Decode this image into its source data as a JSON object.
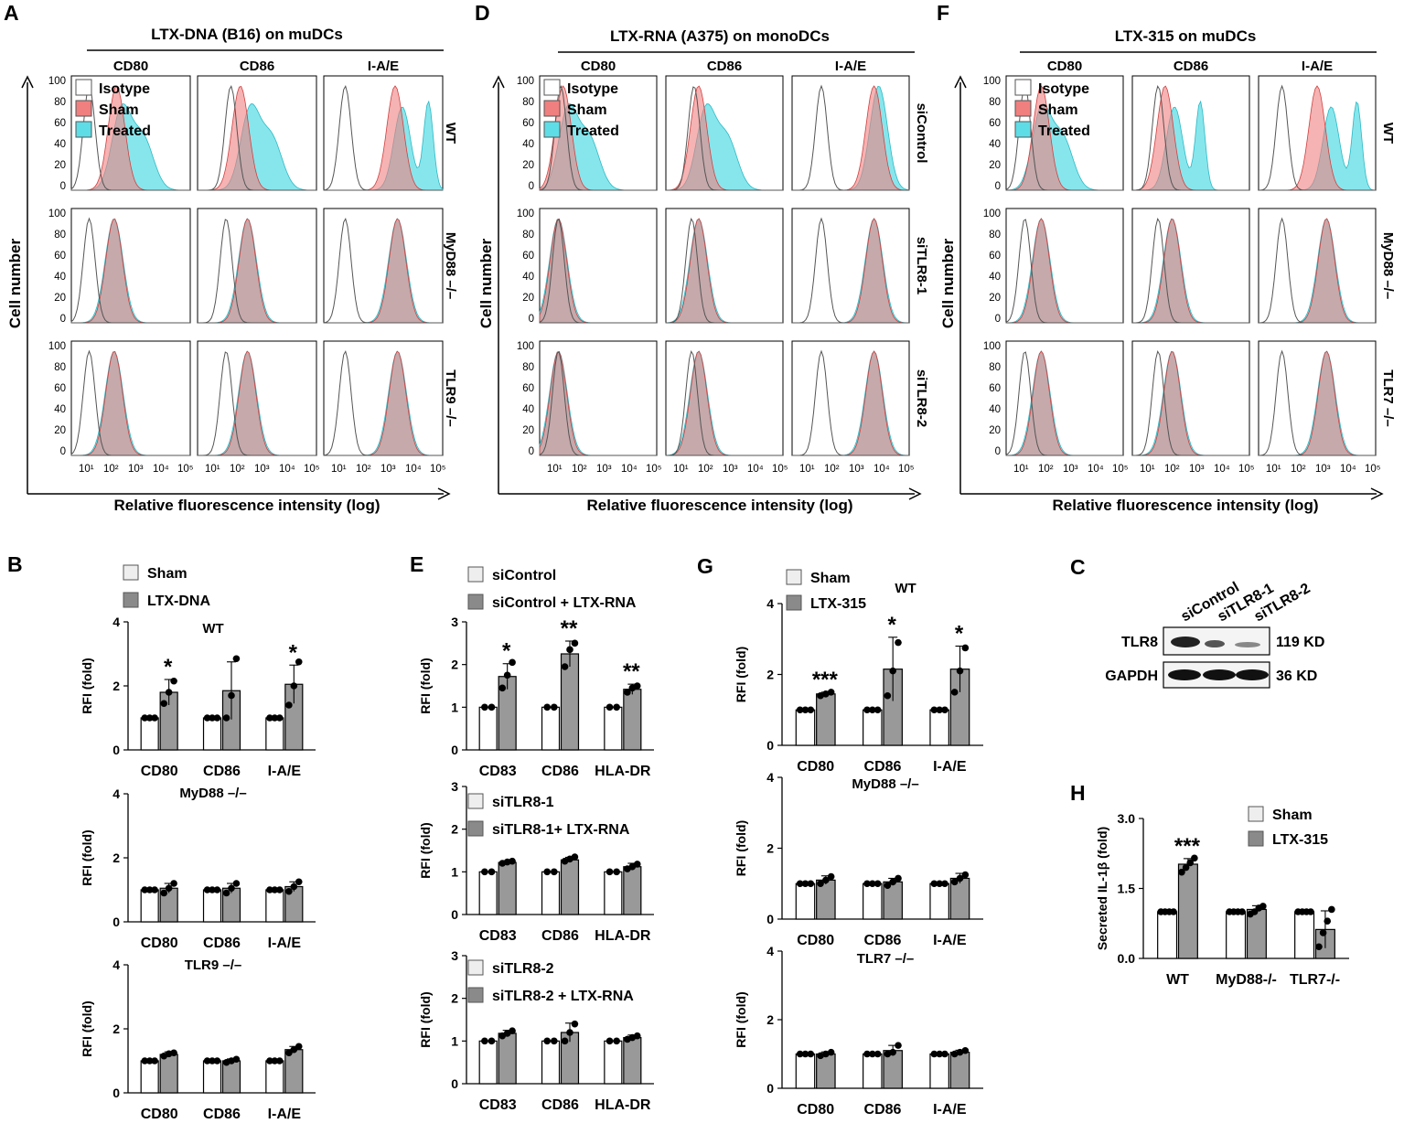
{
  "colors": {
    "isotype": "#555555",
    "sham": "#f08080",
    "treated": "#5fdde6",
    "overlap": "#7f9dbd",
    "bar_light": "#ffffff",
    "bar_dark": "#999999"
  },
  "flow_panels": [
    {
      "id": "flow-a",
      "letter": "A",
      "title": "LTX-DNA (B16) on muDCs",
      "ylabel": "Cell number",
      "xlabel": "Relative fluorescence intensity (log)",
      "columns": [
        "CD80",
        "CD86",
        "I-A/E"
      ],
      "rows": [
        "WT",
        "MyD88 –/–",
        "TLR9 –/–"
      ],
      "legend": [
        "Isotype",
        "Sham",
        "Treated"
      ],
      "yticks": [
        "100",
        "80",
        "60",
        "40",
        "20",
        "0"
      ],
      "xticks": [
        "10¹",
        "10²",
        "10³",
        "10⁴",
        "10⁵"
      ]
    },
    {
      "id": "flow-d",
      "letter": "D",
      "title": "LTX-RNA (A375) on monoDCs",
      "ylabel": "Cell number",
      "xlabel": "Relative fluorescence intensity (log)",
      "columns": [
        "CD80",
        "CD86",
        "I-A/E"
      ],
      "rows": [
        "siControl",
        "siTLR8-1",
        "siTLR8-2"
      ],
      "legend": [
        "Isotype",
        "Sham",
        "Treated"
      ],
      "yticks": [
        "100",
        "80",
        "60",
        "40",
        "20",
        "0"
      ],
      "xticks": [
        "10¹",
        "10²",
        "10³",
        "10⁴",
        "10⁵"
      ]
    },
    {
      "id": "flow-f",
      "letter": "F",
      "title": "LTX-315 on muDCs",
      "ylabel": "Cell number",
      "xlabel": "Relative fluorescence intensity (log)",
      "columns": [
        "CD80",
        "CD86",
        "I-A/E"
      ],
      "rows": [
        "WT",
        "MyD88 –/–",
        "TLR7 –/–"
      ],
      "legend": [
        "Isotype",
        "Sham",
        "Treated"
      ],
      "yticks": [
        "100",
        "80",
        "60",
        "40",
        "20",
        "0"
      ],
      "xticks": [
        "10¹",
        "10²",
        "10³",
        "10⁴",
        "10⁵"
      ]
    }
  ],
  "chart_data": [
    {
      "id": "B",
      "type": "bar",
      "letter": "B",
      "ylabel": "RFI (fold)",
      "legend": [
        "Sham",
        "LTX-DNA"
      ],
      "subplots": [
        {
          "label": "WT",
          "categories": [
            "CD80",
            "CD86",
            "I-A/E"
          ],
          "ylim": [
            0,
            4
          ],
          "yticks": [
            "0",
            "2",
            "4"
          ],
          "series": [
            {
              "name": "Sham",
              "values": [
                1,
                1,
                1
              ]
            },
            {
              "name": "LTX-DNA",
              "values": [
                1.8,
                1.85,
                2.05
              ],
              "err": [
                0.4,
                0.9,
                0.6
              ]
            }
          ],
          "points": [
            [
              [
                1,
                1,
                1
              ],
              [
                1.45,
                1.8,
                2.15
              ]
            ],
            [
              [
                1,
                1,
                1
              ],
              [
                1.0,
                1.7,
                2.85
              ]
            ],
            [
              [
                1,
                1,
                1
              ],
              [
                1.4,
                2.0,
                2.75
              ]
            ]
          ],
          "sig": [
            "*",
            "",
            "*"
          ]
        },
        {
          "label": "MyD88 –/–",
          "categories": [
            "CD80",
            "CD86",
            "I-A/E"
          ],
          "ylim": [
            0,
            4
          ],
          "yticks": [
            "0",
            "2",
            "4"
          ],
          "series": [
            {
              "name": "Sham",
              "values": [
                1,
                1,
                1
              ]
            },
            {
              "name": "LTX-DNA",
              "values": [
                1.05,
                1.05,
                1.1
              ],
              "err": [
                0.15,
                0.15,
                0.15
              ]
            }
          ],
          "points": [
            [
              [
                1,
                1,
                1
              ],
              [
                0.9,
                1.05,
                1.2
              ]
            ],
            [
              [
                1,
                1,
                1
              ],
              [
                0.9,
                1.05,
                1.2
              ]
            ],
            [
              [
                1,
                1,
                1
              ],
              [
                0.95,
                1.1,
                1.25
              ]
            ]
          ],
          "sig": [
            "",
            "",
            ""
          ]
        },
        {
          "label": "TLR9 –/–",
          "categories": [
            "CD80",
            "CD86",
            "I-A/E"
          ],
          "ylim": [
            0,
            4
          ],
          "yticks": [
            "0",
            "2",
            "4"
          ],
          "series": [
            {
              "name": "Sham",
              "values": [
                1,
                1,
                1
              ]
            },
            {
              "name": "LTX-DNA",
              "values": [
                1.2,
                1.0,
                1.35
              ],
              "err": [
                0.08,
                0.06,
                0.1
              ]
            }
          ],
          "points": [
            [
              [
                1,
                1,
                1
              ],
              [
                1.15,
                1.22,
                1.25
              ]
            ],
            [
              [
                1,
                1,
                1
              ],
              [
                0.95,
                1.0,
                1.05
              ]
            ],
            [
              [
                1,
                1,
                1
              ],
              [
                1.25,
                1.35,
                1.45
              ]
            ]
          ],
          "sig": [
            "",
            "",
            ""
          ]
        }
      ]
    },
    {
      "id": "E",
      "type": "bar",
      "letter": "E",
      "ylabel": "RFI (fold)",
      "subplots": [
        {
          "legend": [
            "siControl",
            "siControl + LTX-RNA"
          ],
          "categories": [
            "CD83",
            "CD86",
            "HLA-DR"
          ],
          "ylim": [
            0,
            3
          ],
          "yticks": [
            "0",
            "1",
            "2",
            "3"
          ],
          "series": [
            {
              "name": "siControl",
              "values": [
                1,
                1,
                1
              ]
            },
            {
              "name": "siControl + LTX-RNA",
              "values": [
                1.72,
                2.25,
                1.42
              ],
              "err": [
                0.3,
                0.3,
                0.12
              ]
            }
          ],
          "points": [
            [
              [
                1,
                1
              ],
              [
                1.45,
                1.75,
                2.05
              ]
            ],
            [
              [
                1,
                1
              ],
              [
                1.95,
                2.35,
                2.5
              ]
            ],
            [
              [
                1,
                1
              ],
              [
                1.35,
                1.45,
                1.5
              ]
            ]
          ],
          "sig": [
            "*",
            "**",
            "**"
          ]
        },
        {
          "legend": [
            "siTLR8-1",
            "siTLR8-1+ LTX-RNA"
          ],
          "categories": [
            "CD83",
            "CD86",
            "HLA-DR"
          ],
          "ylim": [
            0,
            3
          ],
          "yticks": [
            "0",
            "1",
            "2",
            "3"
          ],
          "series": [
            {
              "name": "siTLR8-1",
              "values": [
                1,
                1,
                1
              ]
            },
            {
              "name": "siTLR8-1+ LTX-RNA",
              "values": [
                1.22,
                1.28,
                1.12
              ],
              "err": [
                0.04,
                0.06,
                0.08
              ]
            }
          ],
          "points": [
            [
              [
                1,
                1
              ],
              [
                1.2,
                1.23,
                1.25
              ]
            ],
            [
              [
                1,
                1
              ],
              [
                1.25,
                1.3,
                1.35
              ]
            ],
            [
              [
                1,
                1
              ],
              [
                1.07,
                1.12,
                1.18
              ]
            ]
          ],
          "sig": [
            "",
            "",
            ""
          ]
        },
        {
          "legend": [
            "siTLR8-2",
            "siTLR8-2 + LTX-RNA"
          ],
          "categories": [
            "CD83",
            "CD86",
            "HLA-DR"
          ],
          "ylim": [
            0,
            3
          ],
          "yticks": [
            "0",
            "1",
            "2",
            "3"
          ],
          "series": [
            {
              "name": "siTLR8-2",
              "values": [
                1,
                1,
                1
              ]
            },
            {
              "name": "siTLR8-2 + LTX-RNA",
              "values": [
                1.18,
                1.2,
                1.08
              ],
              "err": [
                0.07,
                0.22,
                0.06
              ]
            }
          ],
          "points": [
            [
              [
                1,
                1
              ],
              [
                1.12,
                1.18,
                1.24
              ]
            ],
            [
              [
                1,
                1
              ],
              [
                1.0,
                1.2,
                1.4
              ]
            ],
            [
              [
                1,
                1
              ],
              [
                1.04,
                1.08,
                1.12
              ]
            ]
          ],
          "sig": [
            "",
            "",
            ""
          ]
        }
      ]
    },
    {
      "id": "G",
      "type": "bar",
      "letter": "G",
      "ylabel": "RFI (fold)",
      "legend": [
        "Sham",
        "LTX-315"
      ],
      "subplots": [
        {
          "label": "WT",
          "categories": [
            "CD80",
            "CD86",
            "I-A/E"
          ],
          "ylim": [
            0,
            4
          ],
          "yticks": [
            "0",
            "2",
            "4"
          ],
          "series": [
            {
              "name": "Sham",
              "values": [
                1,
                1,
                1
              ]
            },
            {
              "name": "LTX-315",
              "values": [
                1.45,
                2.15,
                2.15
              ],
              "err": [
                0.05,
                0.9,
                0.65
              ]
            }
          ],
          "points": [
            [
              [
                1,
                1,
                1
              ],
              [
                1.4,
                1.45,
                1.5
              ]
            ],
            [
              [
                1,
                1,
                1
              ],
              [
                1.4,
                2.1,
                2.9
              ]
            ],
            [
              [
                1,
                1,
                1
              ],
              [
                1.5,
                2.1,
                2.75
              ]
            ]
          ],
          "sig": [
            "***",
            "*",
            "*"
          ]
        },
        {
          "label": "MyD88 –/–",
          "categories": [
            "CD80",
            "CD86",
            "I-A/E"
          ],
          "ylim": [
            0,
            4
          ],
          "yticks": [
            "0",
            "2",
            "4"
          ],
          "series": [
            {
              "name": "Sham",
              "values": [
                1,
                1,
                1
              ]
            },
            {
              "name": "LTX-315",
              "values": [
                1.1,
                1.05,
                1.15
              ],
              "err": [
                0.12,
                0.1,
                0.14
              ]
            }
          ],
          "points": [
            [
              [
                1,
                1,
                1
              ],
              [
                1.0,
                1.1,
                1.2
              ]
            ],
            [
              [
                1,
                1,
                1
              ],
              [
                0.95,
                1.05,
                1.15
              ]
            ],
            [
              [
                1,
                1,
                1
              ],
              [
                1.05,
                1.15,
                1.25
              ]
            ]
          ],
          "sig": [
            "",
            "",
            ""
          ]
        },
        {
          "label": "TLR7 –/–",
          "categories": [
            "CD80",
            "CD86",
            "I-A/E"
          ],
          "ylim": [
            0,
            4
          ],
          "yticks": [
            "0",
            "2",
            "4"
          ],
          "series": [
            {
              "name": "Sham",
              "values": [
                1,
                1,
                1
              ]
            },
            {
              "name": "LTX-315",
              "values": [
                1.0,
                1.1,
                1.05
              ],
              "err": [
                0.06,
                0.15,
                0.06
              ]
            }
          ],
          "points": [
            [
              [
                1,
                1,
                1
              ],
              [
                0.95,
                1.0,
                1.05
              ]
            ],
            [
              [
                1,
                1,
                1
              ],
              [
                1.0,
                1.05,
                1.25
              ]
            ],
            [
              [
                1,
                1,
                1
              ],
              [
                1.0,
                1.05,
                1.1
              ]
            ]
          ],
          "sig": [
            "",
            "",
            ""
          ]
        }
      ]
    },
    {
      "id": "H",
      "type": "bar",
      "letter": "H",
      "ylabel": "Secreted IL-1β (fold)",
      "legend": [
        "Sham",
        "LTX-315"
      ],
      "subplots": [
        {
          "categories": [
            "WT",
            "MyD88-/-",
            "TLR7-/-"
          ],
          "ylim": [
            0,
            3
          ],
          "yticks": [
            "0.0",
            "1.5",
            "3.0"
          ],
          "series": [
            {
              "name": "Sham",
              "values": [
                1,
                1,
                1
              ]
            },
            {
              "name": "LTX-315",
              "values": [
                2.02,
                1.05,
                0.62
              ],
              "err": [
                0.12,
                0.08,
                0.4
              ]
            }
          ],
          "points": [
            [
              [
                1,
                1,
                1,
                1
              ],
              [
                1.85,
                1.95,
                2.05,
                2.15
              ]
            ],
            [
              [
                1,
                1,
                1,
                1
              ],
              [
                0.95,
                1.0,
                1.08,
                1.12
              ]
            ],
            [
              [
                1,
                1,
                1,
                1
              ],
              [
                0.25,
                0.55,
                0.8,
                1.05
              ]
            ]
          ],
          "sig": [
            "***",
            "",
            ""
          ]
        }
      ]
    }
  ],
  "western_blot": {
    "letter": "C",
    "lanes": [
      "siControl",
      "siTLR8-1",
      "siTLR8-2"
    ],
    "bands": [
      {
        "label": "TLR8",
        "size": "119 KD"
      },
      {
        "label": "GAPDH",
        "size": "36 KD"
      }
    ]
  }
}
